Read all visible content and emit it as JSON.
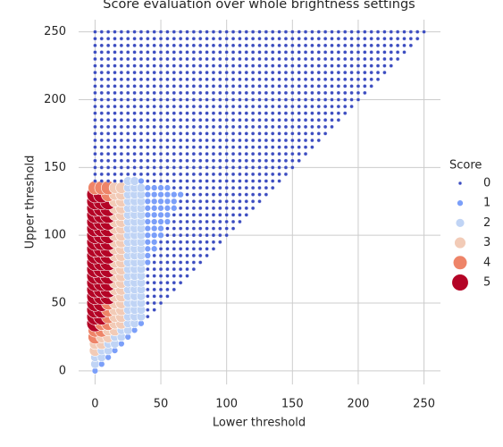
{
  "chart_data": {
    "type": "scatter",
    "title": "Score evaluation over whole brightness settings",
    "xlabel": "Lower threshold",
    "ylabel": "Upper threshold",
    "xlim": [
      -12.5,
      262.5
    ],
    "xticks": [
      0,
      50,
      100,
      150,
      200,
      250
    ],
    "ylim": [
      -10,
      259
    ],
    "yticks": [
      0,
      50,
      100,
      150,
      200,
      250
    ],
    "grid": true,
    "legend": {
      "title": "Score",
      "levels": [
        0,
        1,
        2,
        3,
        4,
        5
      ],
      "corner": "right"
    },
    "palette": [
      "#3b4cc0",
      "#7b9ff9",
      "#c0d4f5",
      "#f2cbb7",
      "#ee8468",
      "#b40426"
    ],
    "x": [
      0,
      5,
      10,
      15,
      20,
      25,
      30,
      35,
      40,
      45,
      50,
      55,
      60,
      65,
      70,
      75,
      80,
      85,
      90,
      95,
      100,
      105,
      110,
      115,
      120,
      125,
      130,
      135,
      140,
      145,
      150,
      155,
      160,
      165,
      170,
      175,
      180,
      185,
      190,
      195,
      200,
      205,
      210,
      215,
      220,
      225,
      230,
      235,
      240,
      245,
      250
    ],
    "y": [
      0,
      5,
      10,
      15,
      20,
      25,
      30,
      35,
      40,
      45,
      50,
      55,
      60,
      65,
      70,
      75,
      80,
      85,
      90,
      95,
      100,
      105,
      110,
      115,
      120,
      125,
      130,
      135,
      140,
      145,
      150,
      155,
      160,
      165,
      170,
      175,
      180,
      185,
      190,
      195,
      200,
      205,
      210,
      215,
      220,
      225,
      230,
      235,
      240,
      245,
      250
    ],
    "scores": [
      [
        1
      ],
      [
        2,
        1
      ],
      [
        2,
        2,
        1
      ],
      [
        3,
        2,
        2,
        1
      ],
      [
        3,
        3,
        2,
        2,
        1
      ],
      [
        4,
        3,
        3,
        2,
        2,
        1
      ],
      [
        4,
        4,
        3,
        3,
        2,
        2,
        1
      ],
      [
        5,
        4,
        4,
        3,
        3,
        2,
        2,
        1
      ],
      [
        5,
        5,
        4,
        3,
        3,
        2,
        2,
        2,
        0
      ],
      [
        5,
        5,
        4,
        3,
        3,
        2,
        2,
        2,
        0,
        0
      ],
      [
        5,
        5,
        4,
        3,
        3,
        2,
        2,
        2,
        0,
        0,
        0
      ],
      [
        5,
        5,
        5,
        3,
        3,
        2,
        2,
        2,
        0,
        0,
        0,
        0
      ],
      [
        5,
        5,
        5,
        3,
        3,
        2,
        2,
        2,
        0,
        0,
        0,
        0,
        0
      ],
      [
        5,
        5,
        5,
        3,
        3,
        2,
        2,
        2,
        0,
        0,
        0,
        0,
        0,
        0
      ],
      [
        5,
        5,
        5,
        3,
        3,
        2,
        2,
        2,
        0,
        0,
        0,
        0,
        0,
        0,
        0
      ],
      [
        5,
        5,
        5,
        3,
        3,
        2,
        2,
        2,
        0,
        0,
        0,
        0,
        0,
        0,
        0,
        0
      ],
      [
        5,
        5,
        5,
        3,
        3,
        2,
        2,
        2,
        1,
        0,
        0,
        0,
        0,
        0,
        0,
        0,
        0
      ],
      [
        5,
        5,
        5,
        3,
        3,
        2,
        2,
        2,
        1,
        0,
        0,
        0,
        0,
        0,
        0,
        0,
        0,
        0
      ],
      [
        5,
        5,
        5,
        3,
        3,
        2,
        2,
        2,
        1,
        1,
        0,
        0,
        0,
        0,
        0,
        0,
        0,
        0,
        0
      ],
      [
        5,
        5,
        5,
        3,
        3,
        2,
        2,
        2,
        1,
        1,
        0,
        0,
        0,
        0,
        0,
        0,
        0,
        0,
        0,
        0
      ],
      [
        5,
        5,
        5,
        3,
        3,
        2,
        2,
        2,
        1,
        1,
        1,
        0,
        0,
        0,
        0,
        0,
        0,
        0,
        0,
        0,
        0
      ],
      [
        5,
        5,
        5,
        3,
        3,
        2,
        2,
        2,
        1,
        1,
        1,
        0,
        0,
        0,
        0,
        0,
        0,
        0,
        0,
        0,
        0,
        0
      ],
      [
        5,
        5,
        5,
        3,
        3,
        2,
        2,
        2,
        1,
        1,
        1,
        1,
        0,
        0,
        0,
        0,
        0,
        0,
        0,
        0,
        0,
        0,
        0
      ],
      [
        5,
        5,
        5,
        3,
        3,
        2,
        2,
        2,
        1,
        1,
        1,
        1,
        0,
        0,
        0,
        0,
        0,
        0,
        0,
        0,
        0,
        0,
        0,
        0
      ],
      [
        5,
        5,
        5,
        3,
        3,
        2,
        2,
        2,
        1,
        1,
        1,
        1,
        1,
        0,
        0,
        0,
        0,
        0,
        0,
        0,
        0,
        0,
        0,
        0,
        0
      ],
      [
        5,
        5,
        5,
        3,
        3,
        2,
        2,
        2,
        1,
        1,
        1,
        1,
        1,
        0,
        0,
        0,
        0,
        0,
        0,
        0,
        0,
        0,
        0,
        0,
        0,
        0
      ],
      [
        5,
        5,
        4,
        3,
        3,
        2,
        2,
        2,
        1,
        1,
        1,
        1,
        1,
        1,
        0,
        0,
        0,
        0,
        0,
        0,
        0,
        0,
        0,
        0,
        0,
        0,
        0
      ],
      [
        4,
        4,
        4,
        3,
        3,
        2,
        2,
        2,
        1,
        1,
        1,
        1,
        0,
        0,
        0,
        0,
        0,
        0,
        0,
        0,
        0,
        0,
        0,
        0,
        0,
        0,
        0,
        0
      ],
      [
        0,
        0,
        0,
        0,
        0,
        2,
        2,
        1,
        0,
        0,
        0,
        0,
        0,
        0,
        0,
        0,
        0,
        0,
        0,
        0,
        0,
        0,
        0,
        0,
        0,
        0,
        0,
        0,
        0
      ],
      [
        0,
        0,
        0,
        0,
        0,
        0,
        0,
        0,
        0,
        0,
        0,
        0,
        0,
        0,
        0,
        0,
        0,
        0,
        0,
        0,
        0,
        0,
        0,
        0,
        0,
        0,
        0,
        0,
        0,
        0
      ],
      [
        0,
        0,
        0,
        0,
        0,
        0,
        0,
        0,
        0,
        0,
        0,
        0,
        0,
        0,
        0,
        0,
        0,
        0,
        0,
        0,
        0,
        0,
        0,
        0,
        0,
        0,
        0,
        0,
        0,
        0,
        0
      ],
      [
        0,
        0,
        0,
        0,
        0,
        0,
        0,
        0,
        0,
        0,
        0,
        0,
        0,
        0,
        0,
        0,
        0,
        0,
        0,
        0,
        0,
        0,
        0,
        0,
        0,
        0,
        0,
        0,
        0,
        0,
        0,
        0
      ],
      [
        0,
        0,
        0,
        0,
        0,
        0,
        0,
        0,
        0,
        0,
        0,
        0,
        0,
        0,
        0,
        0,
        0,
        0,
        0,
        0,
        0,
        0,
        0,
        0,
        0,
        0,
        0,
        0,
        0,
        0,
        0,
        0,
        0
      ],
      [
        0,
        0,
        0,
        0,
        0,
        0,
        0,
        0,
        0,
        0,
        0,
        0,
        0,
        0,
        0,
        0,
        0,
        0,
        0,
        0,
        0,
        0,
        0,
        0,
        0,
        0,
        0,
        0,
        0,
        0,
        0,
        0,
        0,
        0
      ],
      [
        0,
        0,
        0,
        0,
        0,
        0,
        0,
        0,
        0,
        0,
        0,
        0,
        0,
        0,
        0,
        0,
        0,
        0,
        0,
        0,
        0,
        0,
        0,
        0,
        0,
        0,
        0,
        0,
        0,
        0,
        0,
        0,
        0,
        0,
        0
      ],
      [
        0,
        0,
        0,
        0,
        0,
        0,
        0,
        0,
        0,
        0,
        0,
        0,
        0,
        0,
        0,
        0,
        0,
        0,
        0,
        0,
        0,
        0,
        0,
        0,
        0,
        0,
        0,
        0,
        0,
        0,
        0,
        0,
        0,
        0,
        0,
        0
      ],
      [
        0,
        0,
        0,
        0,
        0,
        0,
        0,
        0,
        0,
        0,
        0,
        0,
        0,
        0,
        0,
        0,
        0,
        0,
        0,
        0,
        0,
        0,
        0,
        0,
        0,
        0,
        0,
        0,
        0,
        0,
        0,
        0,
        0,
        0,
        0,
        0,
        0
      ],
      [
        0,
        0,
        0,
        0,
        0,
        0,
        0,
        0,
        0,
        0,
        0,
        0,
        0,
        0,
        0,
        0,
        0,
        0,
        0,
        0,
        0,
        0,
        0,
        0,
        0,
        0,
        0,
        0,
        0,
        0,
        0,
        0,
        0,
        0,
        0,
        0,
        0,
        0
      ],
      [
        0,
        0,
        0,
        0,
        0,
        0,
        0,
        0,
        0,
        0,
        0,
        0,
        0,
        0,
        0,
        0,
        0,
        0,
        0,
        0,
        0,
        0,
        0,
        0,
        0,
        0,
        0,
        0,
        0,
        0,
        0,
        0,
        0,
        0,
        0,
        0,
        0,
        0,
        0
      ],
      [
        0,
        0,
        0,
        0,
        0,
        0,
        0,
        0,
        0,
        0,
        0,
        0,
        0,
        0,
        0,
        0,
        0,
        0,
        0,
        0,
        0,
        0,
        0,
        0,
        0,
        0,
        0,
        0,
        0,
        0,
        0,
        0,
        0,
        0,
        0,
        0,
        0,
        0,
        0,
        0
      ],
      [
        0,
        0,
        0,
        0,
        0,
        0,
        0,
        0,
        0,
        0,
        0,
        0,
        0,
        0,
        0,
        0,
        0,
        0,
        0,
        0,
        0,
        0,
        0,
        0,
        0,
        0,
        0,
        0,
        0,
        0,
        0,
        0,
        0,
        0,
        0,
        0,
        0,
        0,
        0,
        0,
        0
      ],
      [
        0,
        0,
        0,
        0,
        0,
        0,
        0,
        0,
        0,
        0,
        0,
        0,
        0,
        0,
        0,
        0,
        0,
        0,
        0,
        0,
        0,
        0,
        0,
        0,
        0,
        0,
        0,
        0,
        0,
        0,
        0,
        0,
        0,
        0,
        0,
        0,
        0,
        0,
        0,
        0,
        0,
        0
      ],
      [
        0,
        0,
        0,
        0,
        0,
        0,
        0,
        0,
        0,
        0,
        0,
        0,
        0,
        0,
        0,
        0,
        0,
        0,
        0,
        0,
        0,
        0,
        0,
        0,
        0,
        0,
        0,
        0,
        0,
        0,
        0,
        0,
        0,
        0,
        0,
        0,
        0,
        0,
        0,
        0,
        0,
        0,
        0
      ],
      [
        0,
        0,
        0,
        0,
        0,
        0,
        0,
        0,
        0,
        0,
        0,
        0,
        0,
        0,
        0,
        0,
        0,
        0,
        0,
        0,
        0,
        0,
        0,
        0,
        0,
        0,
        0,
        0,
        0,
        0,
        0,
        0,
        0,
        0,
        0,
        0,
        0,
        0,
        0,
        0,
        0,
        0,
        0,
        0
      ],
      [
        0,
        0,
        0,
        0,
        0,
        0,
        0,
        0,
        0,
        0,
        0,
        0,
        0,
        0,
        0,
        0,
        0,
        0,
        0,
        0,
        0,
        0,
        0,
        0,
        0,
        0,
        0,
        0,
        0,
        0,
        0,
        0,
        0,
        0,
        0,
        0,
        0,
        0,
        0,
        0,
        0,
        0,
        0,
        0,
        0
      ],
      [
        0,
        0,
        0,
        0,
        0,
        0,
        0,
        0,
        0,
        0,
        0,
        0,
        0,
        0,
        0,
        0,
        0,
        0,
        0,
        0,
        0,
        0,
        0,
        0,
        0,
        0,
        0,
        0,
        0,
        0,
        0,
        0,
        0,
        0,
        0,
        0,
        0,
        0,
        0,
        0,
        0,
        0,
        0,
        0,
        0,
        0
      ],
      [
        0,
        0,
        0,
        0,
        0,
        0,
        0,
        0,
        0,
        0,
        0,
        0,
        0,
        0,
        0,
        0,
        0,
        0,
        0,
        0,
        0,
        0,
        0,
        0,
        0,
        0,
        0,
        0,
        0,
        0,
        0,
        0,
        0,
        0,
        0,
        0,
        0,
        0,
        0,
        0,
        0,
        0,
        0,
        0,
        0,
        0,
        0
      ],
      [
        0,
        0,
        0,
        0,
        0,
        0,
        0,
        0,
        0,
        0,
        0,
        0,
        0,
        0,
        0,
        0,
        0,
        0,
        0,
        0,
        0,
        0,
        0,
        0,
        0,
        0,
        0,
        0,
        0,
        0,
        0,
        0,
        0,
        0,
        0,
        0,
        0,
        0,
        0,
        0,
        0,
        0,
        0,
        0,
        0,
        0,
        0,
        0
      ],
      [
        0,
        0,
        0,
        0,
        0,
        0,
        0,
        0,
        0,
        0,
        0,
        0,
        0,
        0,
        0,
        0,
        0,
        0,
        0,
        0,
        0,
        0,
        0,
        0,
        0,
        0,
        0,
        0,
        0,
        0,
        0,
        0,
        0,
        0,
        0,
        0,
        0,
        0,
        0,
        0,
        0,
        0,
        0,
        0,
        0,
        0,
        0,
        0,
        0
      ],
      [
        0,
        0,
        0,
        0,
        0,
        0,
        0,
        0,
        0,
        0,
        0,
        0,
        0,
        0,
        0,
        0,
        0,
        0,
        0,
        0,
        0,
        0,
        0,
        0,
        0,
        0,
        0,
        0,
        0,
        0,
        0,
        0,
        0,
        0,
        0,
        0,
        0,
        0,
        0,
        0,
        0,
        0,
        0,
        0,
        0,
        0,
        0,
        0,
        0,
        0
      ],
      [
        0,
        0,
        0,
        0,
        0,
        0,
        0,
        0,
        0,
        0,
        0,
        0,
        0,
        0,
        0,
        0,
        0,
        0,
        0,
        0,
        0,
        0,
        0,
        0,
        0,
        0,
        0,
        0,
        0,
        0,
        0,
        0,
        0,
        0,
        0,
        0,
        0,
        0,
        0,
        0,
        0,
        0,
        0,
        0,
        0,
        0,
        0,
        0,
        0,
        0,
        0
      ]
    ]
  }
}
